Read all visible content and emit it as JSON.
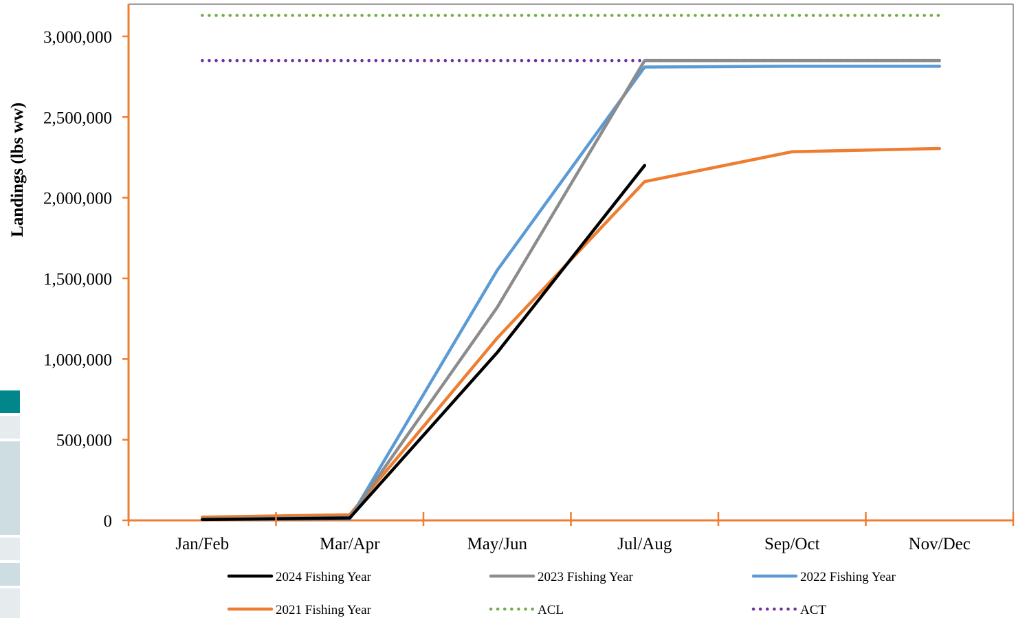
{
  "chart_data": {
    "type": "line",
    "ylabel": "Landings (lbs ww)",
    "categories": [
      "Jan/Feb",
      "Mar/Apr",
      "May/Jun",
      "Jul/Aug",
      "Sep/Oct",
      "Nov/Dec"
    ],
    "ylim": [
      0,
      3200000
    ],
    "yticks": [
      0,
      500000,
      1000000,
      1500000,
      2000000,
      2500000,
      3000000
    ],
    "ytick_labels": [
      "0",
      "500,000",
      "1,000,000",
      "1,500,000",
      "2,000,000",
      "2,500,000",
      "3,000,000"
    ],
    "grid": false,
    "legend_position": "bottom",
    "series": [
      {
        "name": "2024 Fishing Year",
        "color": "#000000",
        "style": "solid",
        "values": [
          5000,
          15000,
          1040000,
          2200000,
          null,
          null
        ]
      },
      {
        "name": "2023 Fishing Year",
        "color": "#8c8c8c",
        "style": "solid",
        "values": [
          10000,
          20000,
          1320000,
          2850000,
          2850000,
          2850000
        ]
      },
      {
        "name": "2022 Fishing Year",
        "color": "#5b9bd5",
        "style": "solid",
        "values": [
          5000,
          10000,
          1550000,
          2810000,
          2815000,
          2815000
        ]
      },
      {
        "name": "2021 Fishing Year",
        "color": "#ed7d31",
        "style": "solid",
        "values": [
          20000,
          35000,
          1130000,
          2100000,
          2285000,
          2305000
        ]
      },
      {
        "name": "ACL",
        "color": "#70ad47",
        "style": "dotted",
        "values": [
          3130000,
          3130000,
          3130000,
          3130000,
          3130000,
          3130000
        ]
      },
      {
        "name": "ACT",
        "color": "#7030a0",
        "style": "dotted",
        "values": [
          2850000,
          2850000,
          2850000,
          2850000,
          2850000,
          2850000
        ]
      }
    ],
    "frame_color": "#ed7d31"
  },
  "side_strip": {
    "colors": [
      "#00868b",
      "#e6ecee",
      "#cddde1",
      "#e6ecee",
      "#cddde1",
      "#e6ecee"
    ]
  }
}
